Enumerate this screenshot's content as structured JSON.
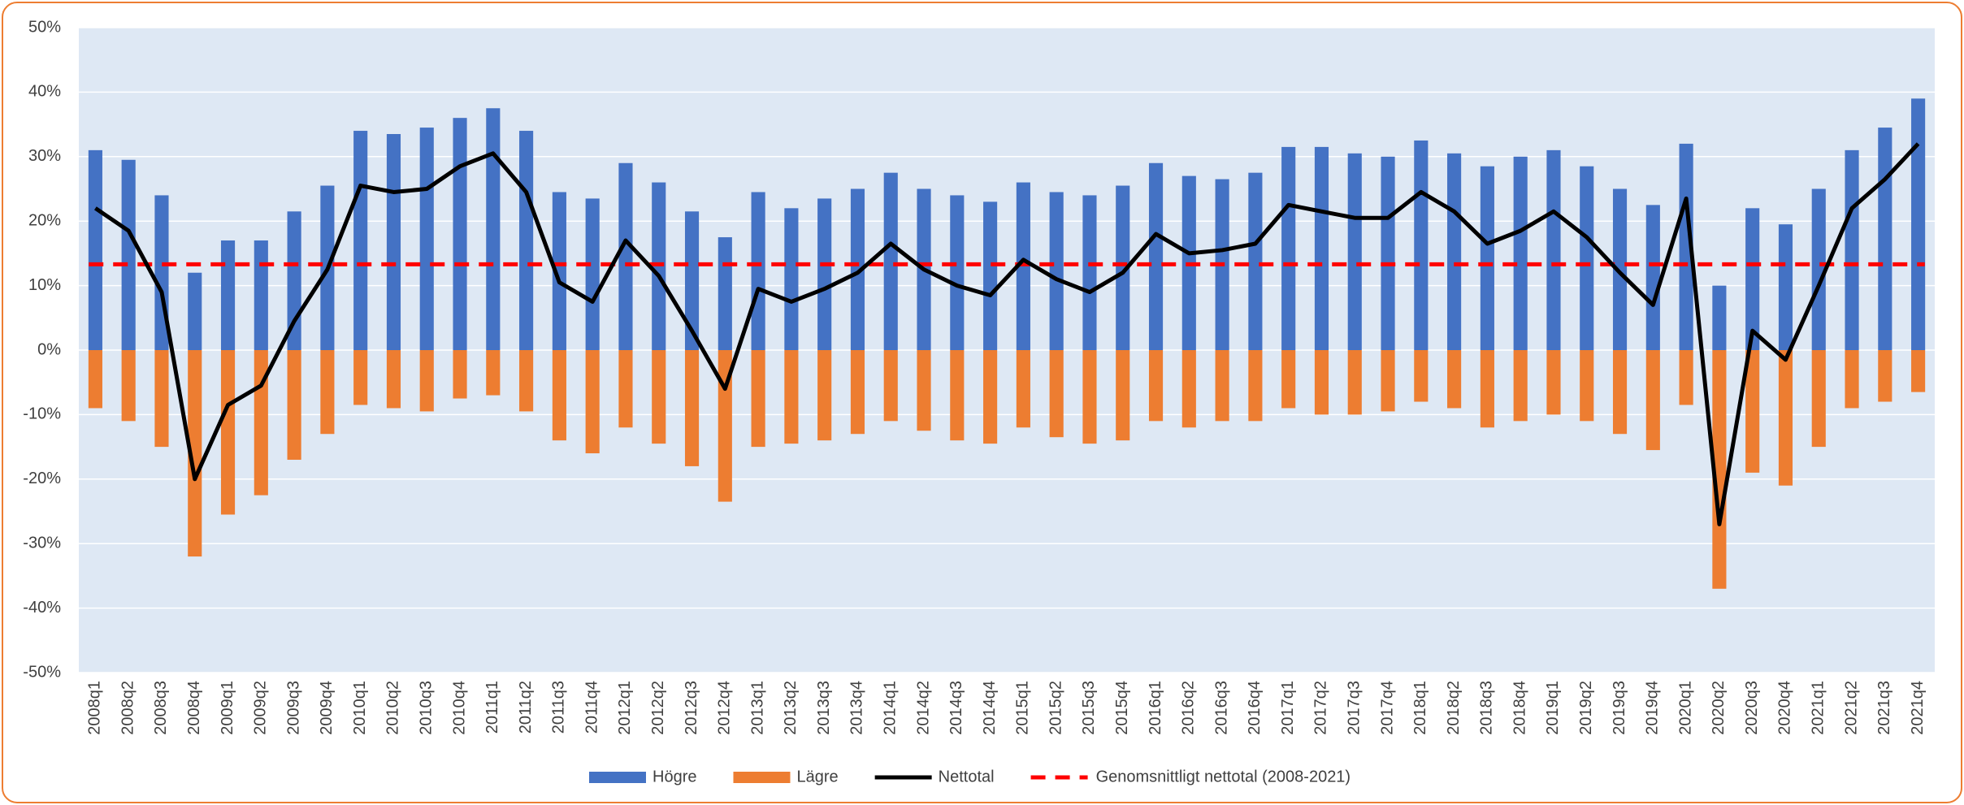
{
  "chart_data": {
    "type": "bar",
    "categories": [
      "2008q1",
      "2008q2",
      "2008q3",
      "2008q4",
      "2009q1",
      "2009q2",
      "2009q3",
      "2009q4",
      "2010q1",
      "2010q2",
      "2010q3",
      "2010q4",
      "2011q1",
      "2011q2",
      "2011q3",
      "2011q4",
      "2012q1",
      "2012q2",
      "2012q3",
      "2012q4",
      "2013q1",
      "2013q2",
      "2013q3",
      "2013q4",
      "2014q1",
      "2014q2",
      "2014q3",
      "2014q4",
      "2015q1",
      "2015q2",
      "2015q3",
      "2015q4",
      "2016q1",
      "2016q2",
      "2016q3",
      "2016q4",
      "2017q1",
      "2017q2",
      "2017q3",
      "2017q4",
      "2018q1",
      "2018q2",
      "2018q3",
      "2018q4",
      "2019q1",
      "2019q2",
      "2019q3",
      "2019q4",
      "2020q1",
      "2020q2",
      "2020q3",
      "2020q4",
      "2021q1",
      "2021q2",
      "2021q3",
      "2021q4"
    ],
    "series": [
      {
        "name": "Högre",
        "color": "#4472c4",
        "style": "bar",
        "values": [
          31,
          29.5,
          24,
          12,
          17,
          17,
          21.5,
          25.5,
          34,
          33.5,
          34.5,
          36,
          37.5,
          34,
          24.5,
          23.5,
          29,
          26,
          21.5,
          17.5,
          24.5,
          22,
          23.5,
          25,
          27.5,
          25,
          24,
          23,
          26,
          24.5,
          24,
          25.5,
          29,
          27,
          26.5,
          27.5,
          31.5,
          31.5,
          30.5,
          30,
          32.5,
          30.5,
          28.5,
          30,
          31,
          28.5,
          25,
          22.5,
          32,
          10,
          22,
          19.5,
          25,
          31,
          34.5,
          39
        ]
      },
      {
        "name": "Lägre",
        "color": "#ed7d31",
        "style": "bar",
        "values": [
          -9,
          -11,
          -15,
          -32,
          -25.5,
          -22.5,
          -17,
          -13,
          -8.5,
          -9,
          -9.5,
          -7.5,
          -7,
          -9.5,
          -14,
          -16,
          -12,
          -14.5,
          -18,
          -23.5,
          -15,
          -14.5,
          -14,
          -13,
          -11,
          -12.5,
          -14,
          -14.5,
          -12,
          -13.5,
          -14.5,
          -14,
          -11,
          -12,
          -11,
          -11,
          -9,
          -10,
          -10,
          -9.5,
          -8,
          -9,
          -12,
          -11,
          -10,
          -11,
          -13,
          -15.5,
          -8.5,
          -37,
          -19,
          -21,
          -15,
          -9,
          -8,
          -6.5
        ]
      },
      {
        "name": "Nettotal",
        "color": "#000000",
        "style": "line",
        "values": [
          22,
          18.5,
          9,
          -20,
          -8.5,
          -5.5,
          4.5,
          12.5,
          25.5,
          24.5,
          25,
          28.5,
          30.5,
          24.5,
          10.5,
          7.5,
          17,
          11.5,
          3,
          -6,
          9.5,
          7.5,
          9.5,
          12,
          16.5,
          12.5,
          10,
          8.5,
          14,
          11,
          9,
          12,
          18,
          15,
          15.5,
          16.5,
          22.5,
          21.5,
          20.5,
          20.5,
          24.5,
          21.5,
          16.5,
          18.5,
          21.5,
          17.5,
          12,
          7,
          23.5,
          -27,
          3,
          -1.5,
          10,
          22,
          26.5,
          32
        ]
      }
    ],
    "average": {
      "name": "Genomsnittligt nettotal (2008-2021)",
      "color": "#ff0000",
      "value": 13.3
    },
    "ylim": [
      -50,
      50
    ],
    "yticks": [
      {
        "value": -50,
        "label": "-50%"
      },
      {
        "value": -40,
        "label": "-40%"
      },
      {
        "value": -30,
        "label": "-30%"
      },
      {
        "value": -20,
        "label": "-20%"
      },
      {
        "value": -10,
        "label": "-10%"
      },
      {
        "value": 0,
        "label": "0%"
      },
      {
        "value": 10,
        "label": "10%"
      },
      {
        "value": 20,
        "label": "20%"
      },
      {
        "value": 30,
        "label": "30%"
      },
      {
        "value": 40,
        "label": "40%"
      },
      {
        "value": 50,
        "label": "50%"
      }
    ],
    "grid": true,
    "legend": "bottom",
    "plot_background": "#dee8f4"
  }
}
